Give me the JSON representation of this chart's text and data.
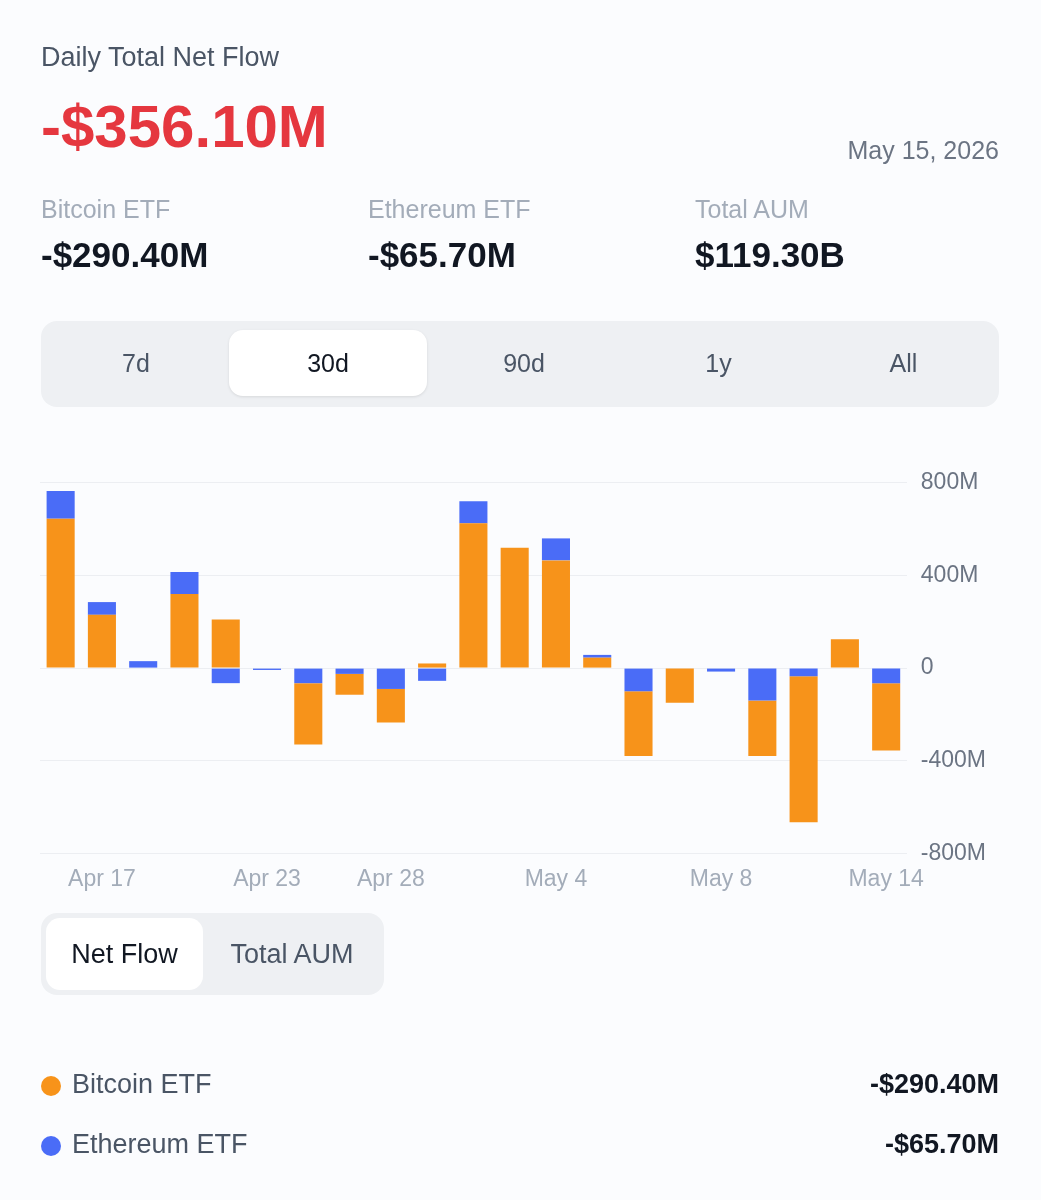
{
  "chart_data": {
    "type": "bar",
    "title": "Daily Total Net Flow",
    "subtitle": "-$356.10M",
    "annotations": [
      "May 15, 2026",
      "Bitcoin ETF",
      "-$290.40M",
      "Ethereum ETF",
      "-$65.70M",
      "Total AUM",
      "$119.30B",
      "7d",
      "30d",
      "90d",
      "1y",
      "All",
      "Net Flow",
      "Total AUM",
      "-$290.40M",
      "-$65.70M"
    ],
    "categories": [
      null,
      "Apr 17",
      null,
      null,
      null,
      "Apr 23",
      null,
      null,
      "Apr 28",
      null,
      null,
      null,
      "May 4",
      null,
      null,
      null,
      "May 8",
      null,
      null,
      null,
      "May 14"
    ],
    "stacked": true,
    "series": [
      {
        "name": "Bitcoin ETF",
        "color": "#f7931a",
        "values": [
          645,
          230,
          0,
          320,
          210,
          0,
          -265,
          -90,
          -145,
          20,
          625,
          520,
          465,
          45,
          -280,
          -150,
          0,
          -240,
          -630,
          125,
          -290.4
        ]
      },
      {
        "name": "Ethereum ETF",
        "color": "#4a6cf7",
        "values": [
          120,
          55,
          30,
          95,
          -65,
          -8,
          -65,
          -25,
          -90,
          -55,
          95,
          0,
          95,
          12,
          -100,
          0,
          -15,
          -140,
          -35,
          0,
          -65.7
        ]
      }
    ],
    "ylim": [
      -800,
      800
    ],
    "yticks": [
      {
        "value": 800,
        "label": "800M"
      },
      {
        "value": 400,
        "label": "400M"
      },
      0,
      {
        "value": -400,
        "label": "-400M"
      },
      {
        "value": -800,
        "label": "-800M"
      }
    ],
    "grid": "y",
    "legend": "bottom"
  }
}
